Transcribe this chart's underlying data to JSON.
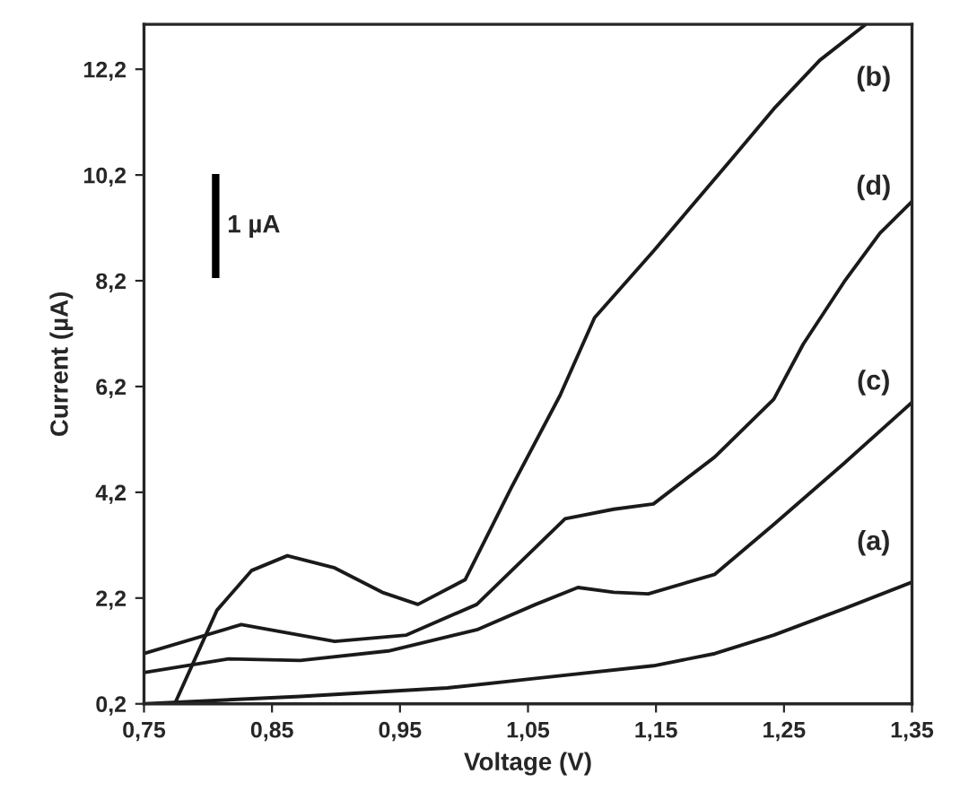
{
  "chart_data": {
    "type": "line",
    "xlabel": "Voltage (V)",
    "ylabel": "Current (µA)",
    "xlim": [
      0.75,
      1.35
    ],
    "ylim": [
      0.2,
      13.05
    ],
    "xticks": [
      {
        "value": 0.75,
        "label": "0,75"
      },
      {
        "value": 0.85,
        "label": "0,85"
      },
      {
        "value": 0.95,
        "label": "0,95"
      },
      {
        "value": 1.05,
        "label": "1,05"
      },
      {
        "value": 1.15,
        "label": "1,15"
      },
      {
        "value": 1.25,
        "label": "1,25"
      },
      {
        "value": 1.35,
        "label": "1,35"
      }
    ],
    "yticks": [
      {
        "value": 0.2,
        "label": "0,2"
      },
      {
        "value": 2.2,
        "label": "2,2"
      },
      {
        "value": 4.2,
        "label": "4,2"
      },
      {
        "value": 6.2,
        "label": "6,2"
      },
      {
        "value": 8.2,
        "label": "8,2"
      },
      {
        "value": 10.2,
        "label": "10,2"
      },
      {
        "value": 12.2,
        "label": "12,2"
      }
    ],
    "grid": false,
    "legend": false,
    "marker": "none",
    "line_style": "solid",
    "series": [
      {
        "name": "(a)",
        "color": "#1a1a1a",
        "x": [
          0.75,
          0.872,
          0.987,
          1.056,
          1.148,
          1.196,
          1.242,
          1.297,
          1.35
        ],
        "values": [
          0.2,
          0.34,
          0.5,
          0.68,
          0.92,
          1.15,
          1.5,
          2.0,
          2.5
        ]
      },
      {
        "name": "(b)",
        "color": "#1a1a1a",
        "x": [
          0.774,
          0.807,
          0.834,
          0.862,
          0.899,
          0.936,
          0.964,
          1.001,
          1.037,
          1.075,
          1.102,
          1.148,
          1.209,
          1.242,
          1.278,
          1.314
        ],
        "values": [
          0.2,
          1.97,
          2.72,
          3.0,
          2.77,
          2.31,
          2.08,
          2.55,
          4.29,
          6.03,
          7.5,
          8.76,
          10.5,
          11.45,
          12.37,
          13.05
        ]
      },
      {
        "name": "(c)",
        "color": "#1a1a1a",
        "x": [
          0.75,
          0.816,
          0.872,
          0.941,
          1.01,
          1.056,
          1.089,
          1.117,
          1.144,
          1.196,
          1.242,
          1.297,
          1.35
        ],
        "values": [
          0.79,
          1.05,
          1.02,
          1.2,
          1.6,
          2.08,
          2.4,
          2.31,
          2.28,
          2.65,
          3.59,
          4.75,
          5.9
        ]
      },
      {
        "name": "1 µA",
        "color": "#000000",
        "x": [
          0.806,
          0.806
        ],
        "values": [
          8.25,
          10.22
        ]
      },
      {
        "name": "(d)",
        "color": "#1a1a1a",
        "x": [
          0.75,
          0.826,
          0.899,
          0.955,
          1.01,
          1.079,
          1.117,
          1.148,
          1.196,
          1.242,
          1.265,
          1.297,
          1.325,
          1.35
        ],
        "values": [
          1.15,
          1.7,
          1.38,
          1.5,
          2.08,
          3.7,
          3.88,
          3.98,
          4.87,
          5.96,
          7.0,
          8.18,
          9.1,
          9.7
        ]
      }
    ]
  }
}
